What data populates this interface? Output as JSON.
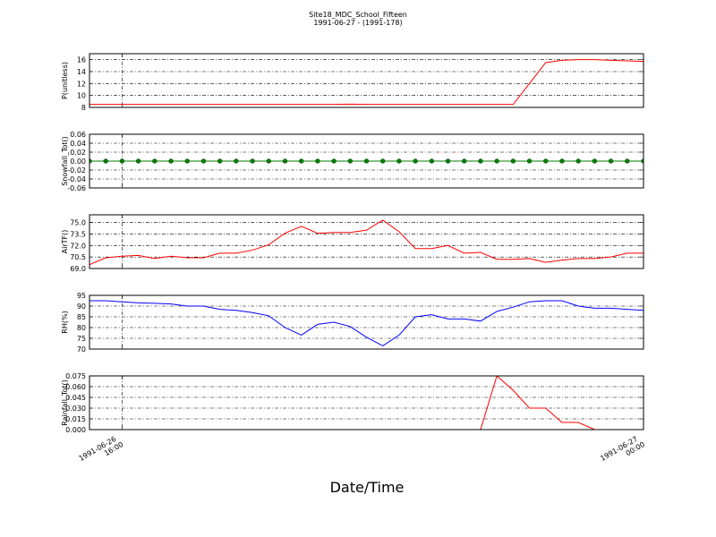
{
  "title": "Site18_MDC_School_Fifteen",
  "subtitle": "1991-06-27 - (1991-178)",
  "shared_x": {
    "label": "Date/Time",
    "xlim": [
      "1991-06-26 15:30",
      "1991-06-27 00:00"
    ],
    "xticks": [
      {
        "value": "1991-06-26 16:00",
        "label": "1991-06-26\n16:00"
      },
      {
        "value": "1991-06-27 00:00",
        "label": "1991-06-27\n00:00"
      }
    ],
    "x": [
      "1991-06-26 15:30",
      "1991-06-26 15:45",
      "1991-06-26 16:00",
      "1991-06-26 16:15",
      "1991-06-26 16:30",
      "1991-06-26 16:45",
      "1991-06-26 17:00",
      "1991-06-26 17:15",
      "1991-06-26 17:30",
      "1991-06-26 17:45",
      "1991-06-26 18:00",
      "1991-06-26 18:15",
      "1991-06-26 18:30",
      "1991-06-26 18:45",
      "1991-06-26 19:00",
      "1991-06-26 19:15",
      "1991-06-26 19:30",
      "1991-06-26 19:45",
      "1991-06-26 20:00",
      "1991-06-26 20:15",
      "1991-06-26 20:30",
      "1991-06-26 20:45",
      "1991-06-26 21:00",
      "1991-06-26 21:15",
      "1991-06-26 21:30",
      "1991-06-26 21:45",
      "1991-06-26 22:00",
      "1991-06-26 22:15",
      "1991-06-26 22:30",
      "1991-06-26 22:45",
      "1991-06-26 23:00",
      "1991-06-26 23:15",
      "1991-06-26 23:30",
      "1991-06-26 23:45",
      "1991-06-27 00:00"
    ]
  },
  "chart_data": [
    {
      "type": "line",
      "ylabel": "P(unitless)",
      "color": "#ff0000",
      "markers": false,
      "grid": true,
      "ylim": [
        8,
        17
      ],
      "yticks": [
        8,
        10,
        12,
        14,
        16
      ],
      "values": [
        8.5,
        8.5,
        8.5,
        8.5,
        8.5,
        8.5,
        8.5,
        8.5,
        8.5,
        8.5,
        8.5,
        8.5,
        8.5,
        8.5,
        8.5,
        8.5,
        8.55,
        8.5,
        8.5,
        8.5,
        8.5,
        8.5,
        8.5,
        8.5,
        8.5,
        8.5,
        8.5,
        12.0,
        15.5,
        15.9,
        16.0,
        16.0,
        15.9,
        15.8,
        15.7
      ]
    },
    {
      "type": "line",
      "ylabel": "Snowfall_Tot()",
      "color": "#008000",
      "markers": true,
      "grid": true,
      "ylim": [
        -0.06,
        0.06
      ],
      "yticks": [
        -0.06,
        -0.04,
        -0.02,
        {
          "value": 0,
          "label": "0.00"
        },
        0.02,
        0.04,
        0.06
      ],
      "values": [
        0,
        0,
        0,
        0,
        0,
        0,
        0,
        0,
        0,
        0,
        0,
        0,
        0,
        0,
        0,
        0,
        0,
        0,
        0,
        0,
        0,
        0,
        0,
        0,
        0,
        0,
        0,
        0,
        0,
        0,
        0,
        0,
        0,
        0,
        0
      ]
    },
    {
      "type": "line",
      "ylabel": "AirTF()",
      "color": "#ff0000",
      "markers": false,
      "grid": true,
      "ylim": [
        69,
        76
      ],
      "yticks": [
        {
          "value": 69,
          "label": "69.0"
        },
        70.5,
        {
          "value": 72,
          "label": "72.0"
        },
        73.5,
        {
          "value": 75,
          "label": "75.0"
        }
      ],
      "values": [
        69.5,
        70.4,
        70.6,
        70.7,
        70.3,
        70.6,
        70.4,
        70.4,
        71.0,
        71.0,
        71.4,
        72.1,
        73.6,
        74.5,
        73.6,
        73.7,
        73.7,
        74.0,
        75.3,
        73.8,
        71.6,
        71.6,
        72.0,
        71.0,
        71.1,
        70.2,
        70.2,
        70.3,
        69.8,
        70.1,
        70.3,
        70.3,
        70.5,
        71.0,
        71.0
      ]
    },
    {
      "type": "line",
      "ylabel": "RH(%)",
      "color": "#0000ff",
      "markers": false,
      "grid": true,
      "ylim": [
        70,
        95
      ],
      "yticks": [
        70,
        75,
        80,
        85,
        90,
        95
      ],
      "values": [
        92.5,
        92.5,
        92,
        91.5,
        91.3,
        91,
        90,
        90,
        88.5,
        88,
        87,
        85.5,
        80,
        76.5,
        81.5,
        82.5,
        80.5,
        75.5,
        71.5,
        76.5,
        85,
        86,
        84,
        84,
        83,
        87.5,
        89.5,
        92,
        92.5,
        92.5,
        90,
        89,
        89,
        88.5,
        88
      ]
    },
    {
      "type": "line",
      "ylabel": "Rainfall_Tot()",
      "color": "#ff0000",
      "markers": false,
      "grid": true,
      "ylim": [
        0,
        0.075
      ],
      "yticks": [
        {
          "value": 0,
          "label": "0.000"
        },
        0.015,
        {
          "value": 0.03,
          "label": "0.030"
        },
        0.045,
        {
          "value": 0.06,
          "label": "0.060"
        },
        0.075
      ],
      "values": [
        0,
        0,
        0,
        0,
        0,
        0,
        0,
        0,
        0,
        0,
        0,
        0,
        0,
        0,
        0,
        0,
        0,
        0,
        0,
        0,
        0,
        0,
        0,
        0,
        0,
        0.075,
        0.055,
        0.03,
        0.03,
        0.01,
        0.01,
        0,
        0,
        0,
        0
      ]
    }
  ]
}
